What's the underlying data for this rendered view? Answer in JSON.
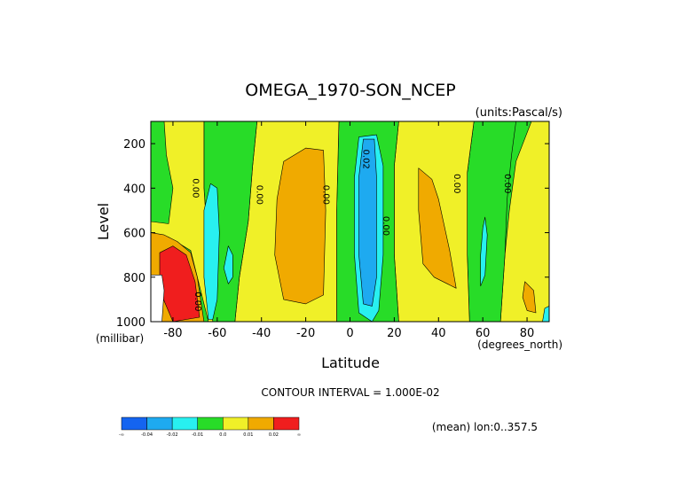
{
  "chart_data": {
    "type": "heatmap",
    "title": "OMEGA_1970-SON_NCEP",
    "units": "(units:Pascal/s)",
    "xlabel": "Latitude",
    "x_units": "(degrees_north)",
    "ylabel": "Level",
    "y_units": "(millibar)",
    "xlim": [
      -90,
      90
    ],
    "ylim": [
      1000,
      100
    ],
    "x_ticks": [
      -80,
      -60,
      -40,
      -20,
      0,
      20,
      40,
      60,
      80
    ],
    "x_tick_labels": [
      "-80",
      "-60",
      "-40",
      "-20",
      "0",
      "20",
      "40",
      "60",
      "80"
    ],
    "y_ticks": [
      200,
      400,
      600,
      800,
      1000
    ],
    "y_tick_labels": [
      "200",
      "400",
      "600",
      "800",
      "1000"
    ],
    "contour_interval_text": "CONTOUR INTERVAL = 1.000E-02",
    "footer_text": "(mean) lon:0..357.5",
    "colorbar": {
      "colors": [
        "#1464f0",
        "#1eaaf0",
        "#28f0f0",
        "#28dc28",
        "#f0f028",
        "#f0aa00",
        "#f01e1e"
      ],
      "labels": [
        "-∞",
        "-0.04",
        "-0.02",
        "-0.01",
        "0.0",
        "0.01",
        "0.02",
        "∞"
      ]
    },
    "contour_labels": [
      {
        "text": "0.00",
        "lat": -71,
        "p": 400
      },
      {
        "text": "0.00",
        "lat": -42,
        "p": 430
      },
      {
        "text": "0.00",
        "lat": -12,
        "p": 430
      },
      {
        "text": "0.02",
        "lat": 6,
        "p": 270
      },
      {
        "text": "0.00",
        "lat": 15,
        "p": 570
      },
      {
        "text": "0.00",
        "lat": 47,
        "p": 380
      },
      {
        "text": "0.00",
        "lat": 70,
        "p": 380
      },
      {
        "text": "0.00",
        "lat": -70,
        "p": 910
      }
    ],
    "regions": [
      {
        "name": "north polar yellow",
        "color": "#f0f028",
        "pts": [
          [
            90,
            1000
          ],
          [
            90,
            450
          ],
          [
            90,
            100
          ],
          [
            82,
            100
          ],
          [
            75,
            280
          ],
          [
            72,
            500
          ],
          [
            70,
            700
          ],
          [
            69,
            850
          ],
          [
            68,
            1000
          ]
        ]
      },
      {
        "name": "60N-70N green",
        "color": "#28dc28",
        "pts": [
          [
            75,
            100
          ],
          [
            56,
            100
          ],
          [
            53,
            330
          ],
          [
            53,
            700
          ],
          [
            54,
            1000
          ],
          [
            68,
            1000
          ],
          [
            69,
            850
          ],
          [
            70,
            700
          ],
          [
            71,
            450
          ],
          [
            73,
            250
          ]
        ]
      },
      {
        "name": "subtropical north yellow",
        "color": "#f0f028",
        "pts": [
          [
            56,
            100
          ],
          [
            22,
            100
          ],
          [
            20,
            300
          ],
          [
            20,
            700
          ],
          [
            22,
            1000
          ],
          [
            54,
            1000
          ],
          [
            53,
            700
          ],
          [
            53,
            330
          ]
        ]
      },
      {
        "name": "tropics green",
        "color": "#28dc28",
        "pts": [
          [
            22,
            100
          ],
          [
            -5,
            100
          ],
          [
            -6,
            500
          ],
          [
            -6,
            1000
          ],
          [
            22,
            1000
          ],
          [
            20,
            700
          ],
          [
            20,
            300
          ]
        ]
      },
      {
        "name": "southern subtropics yellow",
        "color": "#f0f028",
        "pts": [
          [
            -5,
            100
          ],
          [
            -42,
            100
          ],
          [
            -44,
            300
          ],
          [
            -46,
            550
          ],
          [
            -50,
            800
          ],
          [
            -52,
            1000
          ],
          [
            -6,
            1000
          ],
          [
            -6,
            500
          ]
        ]
      },
      {
        "name": "60S band green",
        "color": "#28dc28",
        "pts": [
          [
            -42,
            100
          ],
          [
            -66,
            100
          ],
          [
            -66,
            400
          ],
          [
            -64,
            700
          ],
          [
            -62,
            1000
          ],
          [
            -52,
            1000
          ],
          [
            -50,
            800
          ],
          [
            -46,
            550
          ],
          [
            -44,
            300
          ]
        ]
      },
      {
        "name": "south polar yellow",
        "color": "#f0f028",
        "pts": [
          [
            -66,
            100
          ],
          [
            -90,
            100
          ],
          [
            -90,
            600
          ],
          [
            -82,
            620
          ],
          [
            -72,
            680
          ],
          [
            -64,
            1000
          ],
          [
            -62,
            1000
          ],
          [
            -64,
            700
          ],
          [
            -66,
            400
          ]
        ]
      },
      {
        "name": "80S green sliver",
        "color": "#28dc28",
        "pts": [
          [
            -84,
            100
          ],
          [
            -90,
            100
          ],
          [
            -90,
            550
          ],
          [
            -82,
            560
          ],
          [
            -80,
            400
          ],
          [
            -83,
            250
          ]
        ]
      },
      {
        "name": "60S cyan tongue",
        "color": "#28f0f0",
        "pts": [
          [
            -63,
            380
          ],
          [
            -60,
            400
          ],
          [
            -59,
            600
          ],
          [
            -60,
            900
          ],
          [
            -62,
            990
          ],
          [
            -64,
            990
          ],
          [
            -66,
            800
          ],
          [
            -66,
            500
          ]
        ]
      },
      {
        "name": "near 60S small cyan",
        "color": "#28f0f0",
        "pts": [
          [
            -55,
            660
          ],
          [
            -53,
            700
          ],
          [
            -53,
            800
          ],
          [
            -55,
            830
          ],
          [
            -57,
            760
          ]
        ]
      },
      {
        "name": "antarctic orange",
        "color": "#f0aa00",
        "pts": [
          [
            -90,
            600
          ],
          [
            -84,
            610
          ],
          [
            -78,
            640
          ],
          [
            -72,
            690
          ],
          [
            -69,
            800
          ],
          [
            -66,
            1000
          ],
          [
            -90,
            1000
          ]
        ]
      },
      {
        "name": "antarctic red",
        "color": "#f01e1e",
        "pts": [
          [
            -86,
            690
          ],
          [
            -80,
            660
          ],
          [
            -74,
            700
          ],
          [
            -70,
            820
          ],
          [
            -68,
            980
          ],
          [
            -80,
            1000
          ],
          [
            -86,
            860
          ]
        ]
      },
      {
        "name": "antarctic terrain",
        "color": "#ffffff",
        "pts": [
          [
            -90,
            790
          ],
          [
            -85,
            790
          ],
          [
            -84,
            860
          ],
          [
            -85,
            1000
          ],
          [
            -90,
            1000
          ]
        ]
      },
      {
        "name": "20S orange",
        "color": "#f0aa00",
        "pts": [
          [
            -30,
            280
          ],
          [
            -20,
            220
          ],
          [
            -12,
            230
          ],
          [
            -11,
            500
          ],
          [
            -12,
            880
          ],
          [
            -20,
            920
          ],
          [
            -30,
            900
          ],
          [
            -34,
            700
          ],
          [
            -33,
            450
          ]
        ]
      },
      {
        "name": "equatorial cyan",
        "color": "#28f0f0",
        "pts": [
          [
            4,
            170
          ],
          [
            12,
            160
          ],
          [
            15,
            300
          ],
          [
            15,
            700
          ],
          [
            13,
            950
          ],
          [
            10,
            1000
          ],
          [
            4,
            960
          ],
          [
            2,
            700
          ],
          [
            2,
            350
          ]
        ]
      },
      {
        "name": "equatorial blue",
        "color": "#1eaaf0",
        "pts": [
          [
            6,
            180
          ],
          [
            11,
            180
          ],
          [
            12,
            350
          ],
          [
            12,
            800
          ],
          [
            10,
            930
          ],
          [
            6,
            920
          ],
          [
            4,
            700
          ],
          [
            4,
            350
          ]
        ]
      },
      {
        "name": "35N orange",
        "color": "#f0aa00",
        "pts": [
          [
            31,
            310
          ],
          [
            37,
            360
          ],
          [
            40,
            450
          ],
          [
            45,
            680
          ],
          [
            48,
            850
          ],
          [
            44,
            830
          ],
          [
            38,
            800
          ],
          [
            33,
            740
          ],
          [
            31,
            500
          ]
        ]
      },
      {
        "name": "60N cyan",
        "color": "#28f0f0",
        "pts": [
          [
            61,
            530
          ],
          [
            62,
            610
          ],
          [
            61,
            790
          ],
          [
            59,
            840
          ],
          [
            59,
            700
          ],
          [
            60,
            580
          ]
        ]
      },
      {
        "name": "80N orange",
        "color": "#f0aa00",
        "pts": [
          [
            79,
            820
          ],
          [
            83,
            860
          ],
          [
            84,
            960
          ],
          [
            80,
            950
          ],
          [
            78,
            890
          ]
        ]
      },
      {
        "name": "90N cyan",
        "color": "#28f0f0",
        "pts": [
          [
            88,
            940
          ],
          [
            90,
            930
          ],
          [
            90,
            1000
          ],
          [
            87,
            1000
          ]
        ]
      }
    ]
  }
}
